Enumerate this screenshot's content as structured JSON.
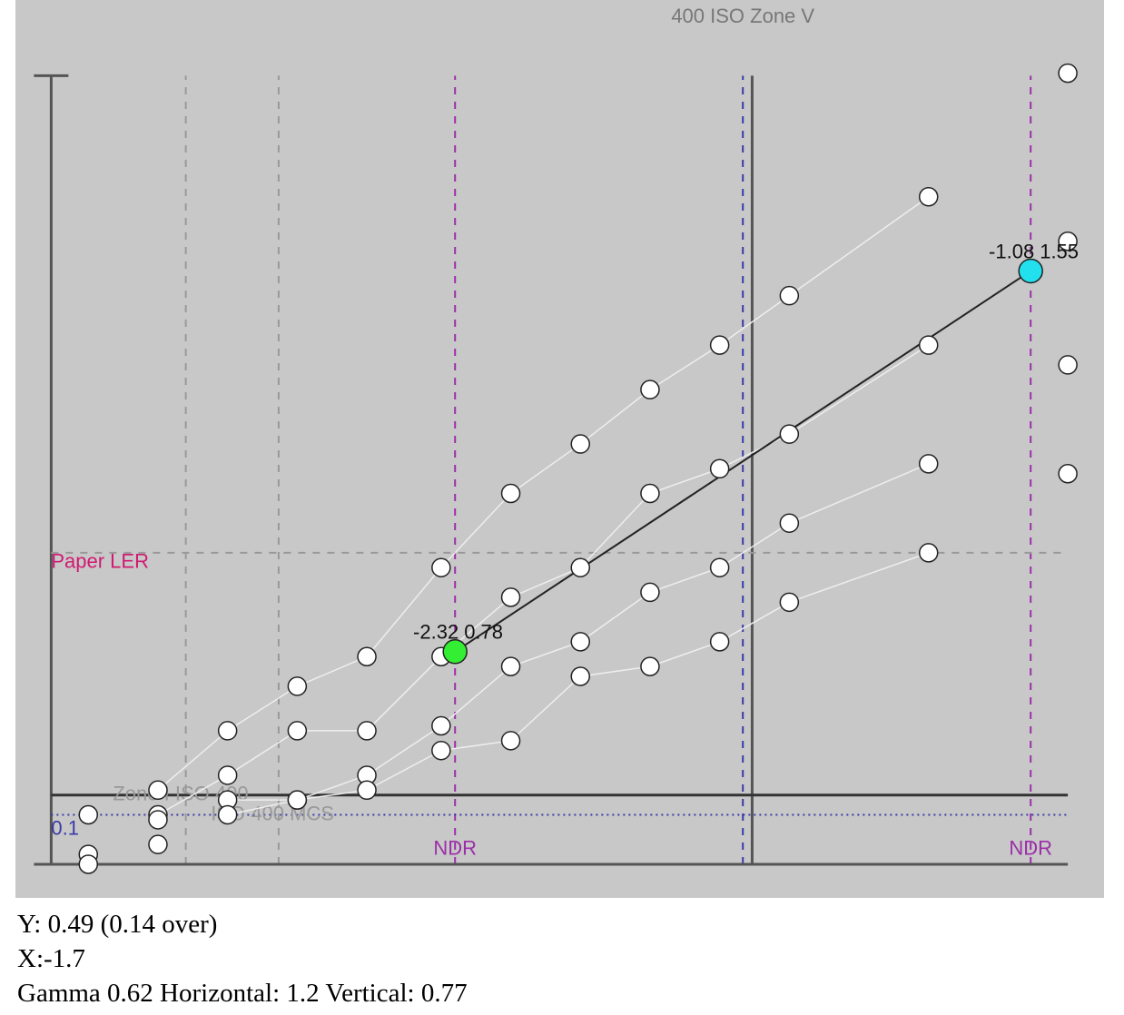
{
  "chart_data": {
    "type": "curves",
    "xlim": [
      -3.267,
      -0.922
    ],
    "ylim": [
      0.282,
      2.098
    ],
    "vspan": [
      0.35,
      1.945
    ],
    "hspan": [
      -3.19,
      -1.0
    ],
    "curves": [
      {
        "x": [
          -2.96,
          -2.81,
          -2.66,
          -2.51,
          -2.35,
          -2.2,
          -2.05,
          -1.9,
          -1.75,
          -1.6,
          -1.3
        ],
        "y": [
          0.5,
          0.62,
          0.71,
          0.77,
          0.95,
          1.1,
          1.2,
          1.31,
          1.4,
          1.5,
          1.7
        ]
      },
      {
        "x": [
          -2.96,
          -2.81,
          -2.66,
          -2.51,
          -2.35,
          -2.2,
          -2.05,
          -1.9,
          -1.75,
          -1.6,
          -1.3
        ],
        "y": [
          0.45,
          0.53,
          0.62,
          0.62,
          0.77,
          0.89,
          0.95,
          1.1,
          1.15,
          1.22,
          1.4
        ]
      },
      {
        "x": [
          -2.81,
          -2.66,
          -2.51,
          -2.35,
          -2.2,
          -2.05,
          -1.9,
          -1.75,
          -1.6,
          -1.3
        ],
        "y": [
          0.48,
          0.48,
          0.53,
          0.63,
          0.75,
          0.8,
          0.9,
          0.95,
          1.04,
          1.16
        ]
      },
      {
        "x": [
          -2.81,
          -2.66,
          -2.51,
          -2.35,
          -2.2,
          -2.05,
          -1.9,
          -1.75,
          -1.6,
          -1.3
        ],
        "y": [
          0.45,
          0.48,
          0.5,
          0.58,
          0.6,
          0.73,
          0.75,
          0.8,
          0.88,
          0.98
        ]
      }
    ],
    "points": {
      "x": [
        -3.11,
        -3.11,
        -3.11,
        -2.96,
        -2.96,
        -1.0,
        -1.0,
        -1.0,
        -1.0
      ],
      "y": [
        0.45,
        0.37,
        0.35,
        0.39,
        0.44,
        1.95,
        1.61,
        1.36,
        1.14
      ]
    },
    "vlines": [
      {
        "value": -3.19,
        "color": "#555555",
        "style": "solid"
      },
      {
        "value": -2.9,
        "color": "#999999",
        "style": "dashed"
      },
      {
        "value": -2.7,
        "color": "#999999",
        "style": "dashed"
      },
      {
        "value": -2.32,
        "color": "#9b2fa8",
        "style": "dashed"
      },
      {
        "value": -1.7,
        "color": "#3a3aa8",
        "style": "dashed"
      },
      {
        "value": -1.68,
        "color": "#555555",
        "style": "solid"
      },
      {
        "value": -1.08,
        "color": "#9b2fa8",
        "style": "dashed"
      }
    ],
    "hlines": [
      {
        "value": 0.35,
        "color": "#555555",
        "style": "solid"
      },
      {
        "value": 0.49,
        "color": "#333333",
        "style": "solid"
      },
      {
        "value": 0.45,
        "color": "#3a3aa8",
        "style": "dotted"
      },
      {
        "value": 0.98,
        "color": "#999999",
        "style": "dashed"
      }
    ],
    "annotations": [
      {
        "text": "400 ISO Zone V",
        "x": -1.7,
        "y": 2.063,
        "color": "#777777",
        "anchor": "middle"
      },
      {
        "text": "Paper LER",
        "x": -3.19,
        "y": 0.96,
        "color": "#d01a72",
        "anchor": "start"
      },
      {
        "text": "Zone I ISO 400",
        "x": -3.057,
        "y": 0.49,
        "color": "#999999",
        "anchor": "start"
      },
      {
        "text": "ISO 400 MCS",
        "x": -2.846,
        "y": 0.45,
        "color": "#999999",
        "anchor": "start"
      },
      {
        "text": "0.1",
        "x": -3.19,
        "y": 0.42,
        "color": "#3a3aa8",
        "anchor": "start"
      },
      {
        "text": "NDR",
        "x": -2.32,
        "y": 0.38,
        "color": "#9b2fa8",
        "anchor": "middle"
      },
      {
        "text": "NDR",
        "x": -1.08,
        "y": 0.38,
        "color": "#9b2fa8",
        "anchor": "middle"
      }
    ],
    "markers": [
      {
        "x": -2.32,
        "y": 0.78,
        "color": "#33ee33"
      },
      {
        "x": -1.08,
        "y": 1.55,
        "color": "#22e0ee"
      }
    ]
  },
  "readout": [
    "Y: 0.49 (0.14 over)",
    "X:-1.7",
    "Gamma 0.62 Horizontal: 1.2 Vertical: 0.77"
  ]
}
